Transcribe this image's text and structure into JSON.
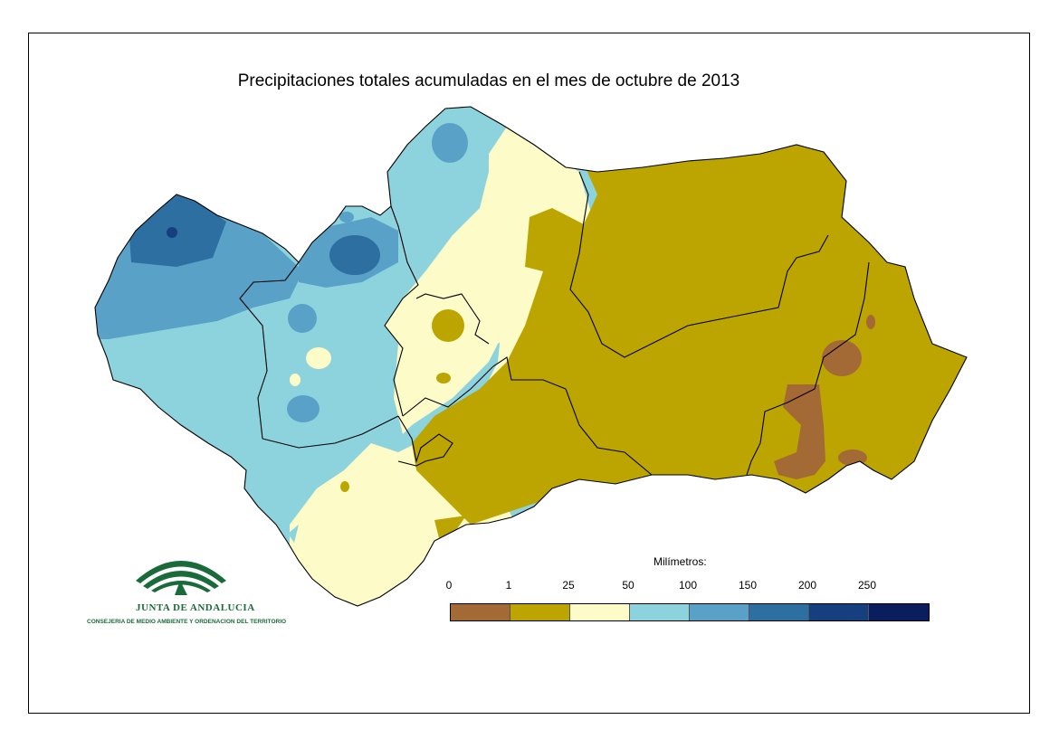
{
  "map": {
    "title": "Precipitaciones totales acumuladas en el mes de octubre de 2013",
    "region_outline_color": "#000000"
  },
  "legend": {
    "title": "Milímetros:",
    "ticks": [
      "0",
      "1",
      "25",
      "50",
      "100",
      "150",
      "200",
      "250"
    ],
    "classes": [
      {
        "range": "0-1",
        "color": "#a46a36"
      },
      {
        "range": "1-25",
        "color": "#bca500"
      },
      {
        "range": "25-50",
        "color": "#fdfbc8"
      },
      {
        "range": "50-100",
        "color": "#8dd3de"
      },
      {
        "range": "100-150",
        "color": "#5aa1c8"
      },
      {
        "range": "150-200",
        "color": "#2d6fa0"
      },
      {
        "range": "200-250",
        "color": "#153f7e"
      },
      {
        "range": ">250",
        "color": "#0a1d5c"
      }
    ]
  },
  "logo": {
    "name": "JUNTA DE ANDALUCIA",
    "subtitle": "CONSEJERIA DE MEDIO AMBIENTE Y ORDENACION DEL TERRITORIO",
    "color": "#1a6b3a"
  }
}
